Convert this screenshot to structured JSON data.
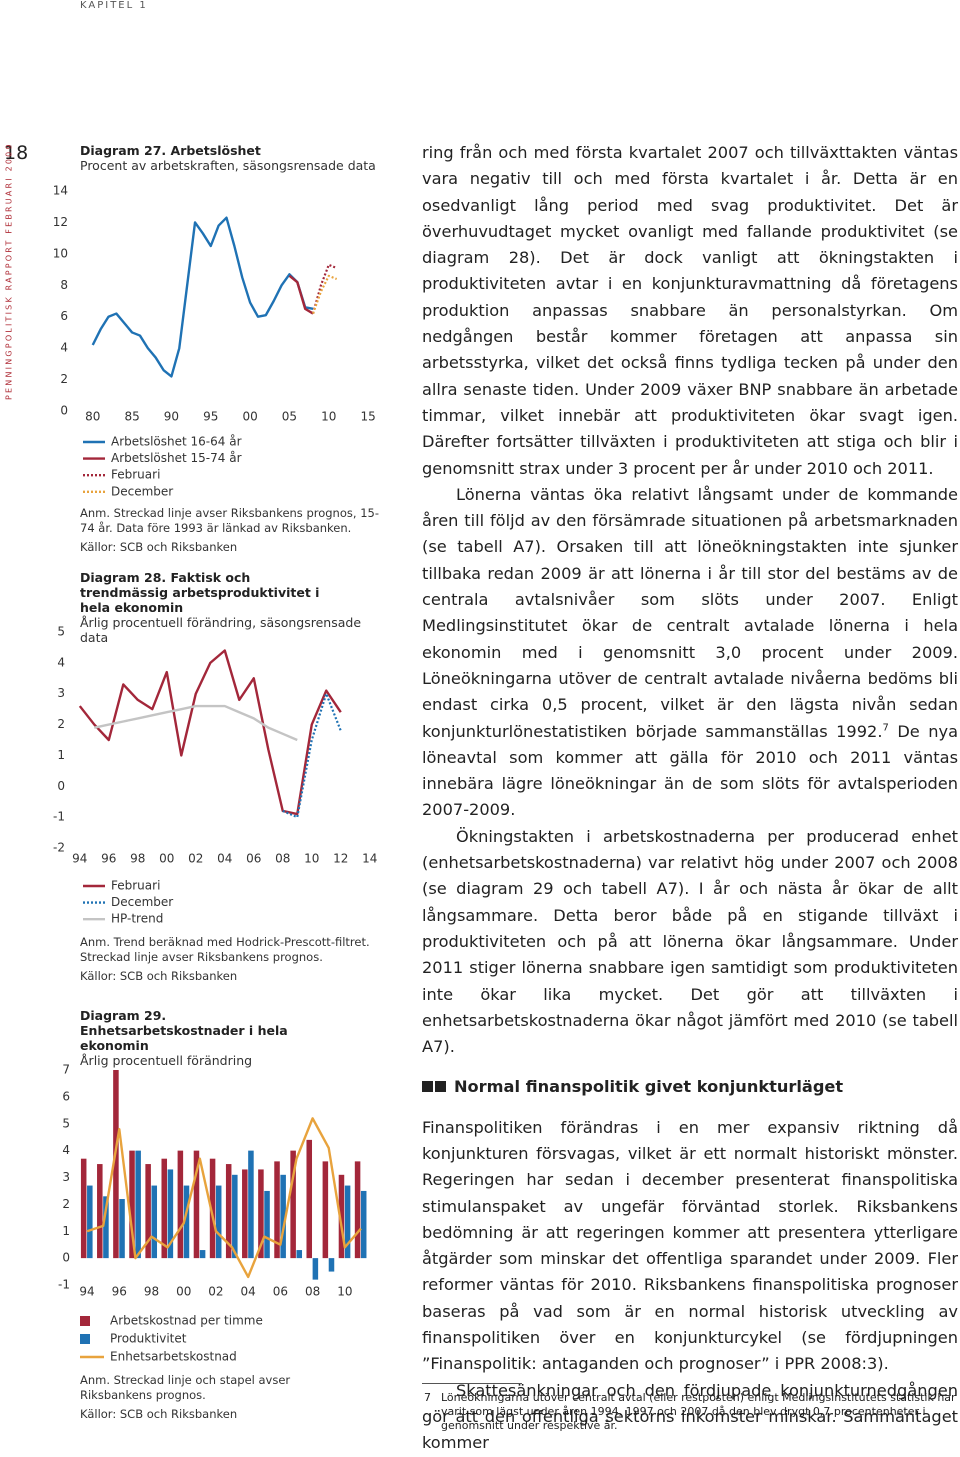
{
  "header": {
    "chapter": "KAPITEL 1",
    "page_number": "18",
    "publication": "PENNINGPOLITISK RAPPORT FEBRUARI 2009"
  },
  "chart_data": [
    {
      "type": "line",
      "title": "Diagram 27. Arbetslöshet",
      "subtitle": "Procent av arbetskraften, säsongsrensade data",
      "x": [
        1980,
        1981,
        1982,
        1983,
        1984,
        1985,
        1986,
        1987,
        1988,
        1989,
        1990,
        1991,
        1992,
        1993,
        1994,
        1995,
        1996,
        1997,
        1998,
        1999,
        2000,
        2001,
        2002,
        2003,
        2004,
        2005,
        2006,
        2007,
        2008,
        2009,
        2010,
        2011
      ],
      "series": [
        {
          "name": "Arbetslöshet 16-64 år",
          "color": "#1f72b4",
          "values": [
            4.2,
            5.2,
            6.0,
            6.2,
            5.6,
            5.0,
            4.8,
            4.0,
            3.4,
            2.6,
            2.2,
            4.0,
            8.0,
            12.0,
            11.3,
            10.5,
            11.8,
            12.3,
            10.5,
            8.5,
            6.9,
            6.0,
            6.1,
            7.0,
            8.0,
            8.7,
            8.2,
            6.6,
            6.5,
            null,
            null,
            null
          ]
        },
        {
          "name": "Arbetslöshet 15-74 år",
          "color": "#a3273a",
          "values": [
            null,
            null,
            null,
            null,
            null,
            null,
            null,
            null,
            null,
            null,
            null,
            null,
            null,
            null,
            null,
            null,
            null,
            null,
            null,
            null,
            null,
            null,
            null,
            null,
            null,
            8.6,
            8.2,
            6.5,
            6.2,
            null,
            null,
            null
          ]
        },
        {
          "name": "Februari",
          "color": "#a3273a",
          "dashed": true,
          "values": [
            null,
            null,
            null,
            null,
            null,
            null,
            null,
            null,
            null,
            null,
            null,
            null,
            null,
            null,
            null,
            null,
            null,
            null,
            null,
            null,
            null,
            null,
            null,
            null,
            null,
            null,
            null,
            null,
            6.2,
            8.0,
            9.3,
            9.1
          ]
        },
        {
          "name": "December",
          "color": "#e8a33d",
          "dashed": true,
          "values": [
            null,
            null,
            null,
            null,
            null,
            null,
            null,
            null,
            null,
            null,
            null,
            null,
            null,
            null,
            null,
            null,
            null,
            null,
            null,
            null,
            null,
            null,
            null,
            null,
            null,
            null,
            null,
            null,
            6.2,
            7.6,
            8.6,
            8.4
          ]
        }
      ],
      "xlim": [
        1978,
        2016
      ],
      "xticks": [
        {
          "value": 1980,
          "label": "80"
        },
        {
          "value": 1985,
          "label": "85"
        },
        {
          "value": 1990,
          "label": "90"
        },
        {
          "value": 1995,
          "label": "95"
        },
        {
          "value": 2000,
          "label": "00"
        },
        {
          "value": 2005,
          "label": "05"
        },
        {
          "value": 2010,
          "label": "10"
        },
        {
          "value": 2015,
          "label": "15"
        }
      ],
      "ylim": [
        0,
        14
      ],
      "yticks": [
        0,
        2,
        4,
        6,
        8,
        10,
        12,
        14
      ],
      "note": "Anm. Streckad linje avser Riksbankens prognos, 15-74 år. Data före 1993 är länkad av Riksbanken.",
      "source": "Källor: SCB och Riksbanken"
    },
    {
      "type": "line",
      "title": "Diagram 28. Faktisk och trendmässig arbetsproduktivitet i hela ekonomin",
      "subtitle": "Årlig procentuell förändring, säsongsrensade data",
      "x": [
        1994,
        1995,
        1996,
        1997,
        1998,
        1999,
        2000,
        2001,
        2002,
        2003,
        2004,
        2005,
        2006,
        2007,
        2008,
        2009,
        2010,
        2011,
        2012
      ],
      "series": [
        {
          "name": "Februari",
          "color": "#a3273a",
          "values": [
            2.6,
            2.0,
            1.5,
            3.3,
            2.8,
            2.5,
            3.7,
            1.0,
            3.0,
            4.0,
            4.4,
            2.8,
            3.5,
            1.2,
            -0.8,
            -0.9,
            2.0,
            3.1,
            2.4
          ]
        },
        {
          "name": "December",
          "color": "#1f72b4",
          "dashed": true,
          "values": [
            null,
            null,
            null,
            null,
            null,
            null,
            null,
            null,
            null,
            null,
            null,
            null,
            null,
            null,
            -0.8,
            -1.0,
            1.5,
            3.0,
            1.8
          ]
        },
        {
          "name": "HP-trend",
          "color": "#c4c4c4",
          "values": [
            null,
            1.9,
            2.0,
            2.1,
            2.2,
            2.3,
            2.4,
            2.5,
            2.6,
            2.6,
            2.6,
            2.4,
            2.2,
            1.9,
            1.7,
            1.5,
            null,
            null,
            null
          ]
        }
      ],
      "xlim": [
        1993.6,
        2014.5
      ],
      "xticks": [
        {
          "value": 1994,
          "label": "94"
        },
        {
          "value": 1996,
          "label": "96"
        },
        {
          "value": 1998,
          "label": "98"
        },
        {
          "value": 2000,
          "label": "00"
        },
        {
          "value": 2002,
          "label": "02"
        },
        {
          "value": 2004,
          "label": "04"
        },
        {
          "value": 2006,
          "label": "06"
        },
        {
          "value": 2008,
          "label": "08"
        },
        {
          "value": 2010,
          "label": "10"
        },
        {
          "value": 2012,
          "label": "12"
        },
        {
          "value": 2014,
          "label": "14"
        }
      ],
      "ylim": [
        -2,
        5
      ],
      "yticks": [
        -2,
        -1,
        0,
        1,
        2,
        3,
        4,
        5
      ],
      "note": "Anm. Trend beräknad med Hodrick-Prescott-filtret. Streckad linje avser Riksbankens prognos.",
      "source": "Källor: SCB och Riksbanken"
    },
    {
      "type": "bar",
      "title": "Diagram 29. Enhetsarbetskostnader i hela ekonomin",
      "subtitle": "Årlig procentuell förändring",
      "categories": [
        "94",
        null,
        "96",
        null,
        "98",
        null,
        "00",
        null,
        "02",
        null,
        "04",
        null,
        "06",
        null,
        "08",
        null,
        "10",
        null
      ],
      "series": [
        {
          "name": "Arbetskostnad per timme",
          "color": "#a3273a",
          "values": [
            3.7,
            3.5,
            7.0,
            4.0,
            3.5,
            3.7,
            4.0,
            4.0,
            3.7,
            3.5,
            3.3,
            3.3,
            3.6,
            4.0,
            4.4,
            3.6,
            3.1,
            3.6
          ]
        },
        {
          "name": "Produktivitet",
          "color": "#1f72b4",
          "values": [
            2.7,
            2.3,
            2.2,
            4.0,
            2.7,
            3.3,
            2.7,
            0.3,
            2.7,
            3.1,
            4.0,
            2.5,
            3.1,
            0.3,
            -0.8,
            -0.5,
            2.7,
            2.5
          ]
        },
        {
          "name": "Enhetsarbetskostnad",
          "color": "#e8a33d",
          "type": "line",
          "values": [
            1.0,
            1.2,
            4.8,
            0.0,
            0.8,
            0.4,
            1.3,
            3.7,
            1.0,
            0.4,
            -0.7,
            0.8,
            0.5,
            3.7,
            5.2,
            4.1,
            0.4,
            1.1
          ]
        }
      ],
      "ylim": [
        -1,
        7
      ],
      "yticks": [
        -1,
        0,
        1,
        2,
        3,
        4,
        5,
        6,
        7
      ],
      "note": "Anm. Streckad linje och stapel avser Riksbankens prognos.",
      "source": "Källor: SCB och Riksbanken"
    }
  ],
  "body": {
    "p1": "ring från och med första kvartalet 2007 och tillväxttakten väntas vara negativ till och med första kvartalet i år. Detta är en osedvanligt lång period med svag produktivitet. Det är överhuvudtaget mycket ovanligt med fallande produktivitet (se diagram 28). Det är dock vanligt att ökningstakten i produktiviteten avtar i en konjunkturavmattning då företagens produktion anpassas snabbare än personalstyrkan. Om nedgången består kommer företagen att anpassa sin arbetsstyrka, vilket det också finns tydliga tecken på under den allra senaste tiden. Under 2009 växer BNP snabbare än arbetade timmar, vilket innebär att produktiviteten ökar svagt igen. Därefter fortsätter tillväxten i produktiviteten att stiga och blir i genomsnitt strax under 3 procent per år under 2010 och 2011.",
    "p2": "Lönerna väntas öka relativt långsamt under de kommande åren till följd av den försämrade situationen på arbetsmarknaden (se tabell A7). Orsaken till att löneökningstakten inte sjunker tillbaka redan 2009 är att lönerna i år till stor del bestäms av de centrala avtalsnivåer som slöts under 2007. Enligt Medlingsinstitutet ökar de centralt avtalade lönerna i hela ekonomin med i genomsnitt 3,0 procent under 2009. Löneökningarna utöver de centralt avtalade nivåerna bedöms bli endast cirka 0,5 procent, vilket är den lägsta nivån sedan konjunkturlönestatistiken började sammanställas 1992.",
    "p2_note_ref": "7",
    "p2_after": " De nya löneavtal som kommer att gälla för 2010 och 2011 väntas innebära lägre löneökningar än de som slöts för avtalsperioden 2007-2009.",
    "p3": "Ökningstakten i arbetskostnaderna per producerad enhet (enhetsarbetskostnaderna) var relativt hög under 2007 och 2008 (se diagram 29 och tabell A7). I år och nästa år ökar de allt långsammare. Detta beror både på en stigande tillväxt i produktiviteten och på att lönerna ökar långsammare. Under 2011 stiger lönerna snabbare igen samtidigt som produktiviteten inte ökar lika mycket. Det gör att tillväxten i enhetsarbetskostnaderna ökar något jämfört med 2010 (se tabell A7).",
    "heading": "Normal finanspolitik givet konjunkturläget",
    "p4": "Finanspolitiken förändras i en mer expansiv riktning då konjunkturen försvagas, vilket är ett normalt historiskt mönster. Regeringen har sedan i december presenterat finanspolitiska stimulanspaket av ungefär förväntad storlek. Riksbankens bedömning är att regeringen kommer att presentera ytterligare åtgärder som minskar det offentliga sparandet under 2009. Fler reformer väntas för 2010. Riksbankens finanspolitiska prognoser baseras på vad som är en normal historisk utveckling av finanspolitiken över en konjunkturcykel (se fördjupningen ”Finanspolitik: antaganden och prognoser” i PPR 2008:3).",
    "p5": "Skattesänkningar och den fördjupade konjunkturnedgången gör att den offentliga sektorns inkomster minskar. Sammantaget kommer"
  },
  "footnote": {
    "number": "7",
    "text": "Löneökningarna utöver centralt avtal (eller restposten) enligt Medlingsinstitutets statistik har varit som lägst under åren 1994, 1997 och 2007 då den blev drygt 0,7 procentenheter i genomsnitt under respektive år."
  }
}
